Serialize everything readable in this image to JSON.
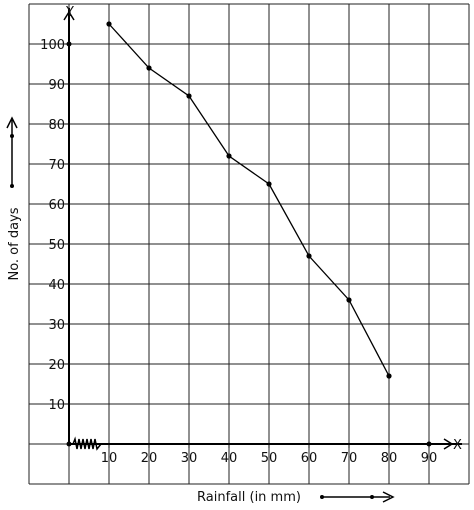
{
  "chart_data": {
    "type": "line",
    "title": "",
    "xlabel": "Rainfall (in mm)",
    "ylabel": "No. of days",
    "x_axis_letter": "X",
    "y_axis_letter": "Y",
    "x": [
      10,
      20,
      30,
      40,
      50,
      60,
      70,
      80
    ],
    "series": [
      {
        "values": [
          105,
          94,
          87,
          72,
          65,
          47,
          36,
          17
        ]
      }
    ],
    "xlim": [
      0,
      100
    ],
    "ylim": [
      -10,
      110
    ],
    "x_ticks": [
      "10",
      "20",
      "30",
      "40",
      "50",
      "60",
      "70",
      "80",
      "90"
    ],
    "y_ticks": [
      "10",
      "20",
      "30",
      "40",
      "50",
      "60",
      "70",
      "80",
      "90",
      "100"
    ],
    "grid": true,
    "kinked_origin": true,
    "line_color": "#000000"
  }
}
